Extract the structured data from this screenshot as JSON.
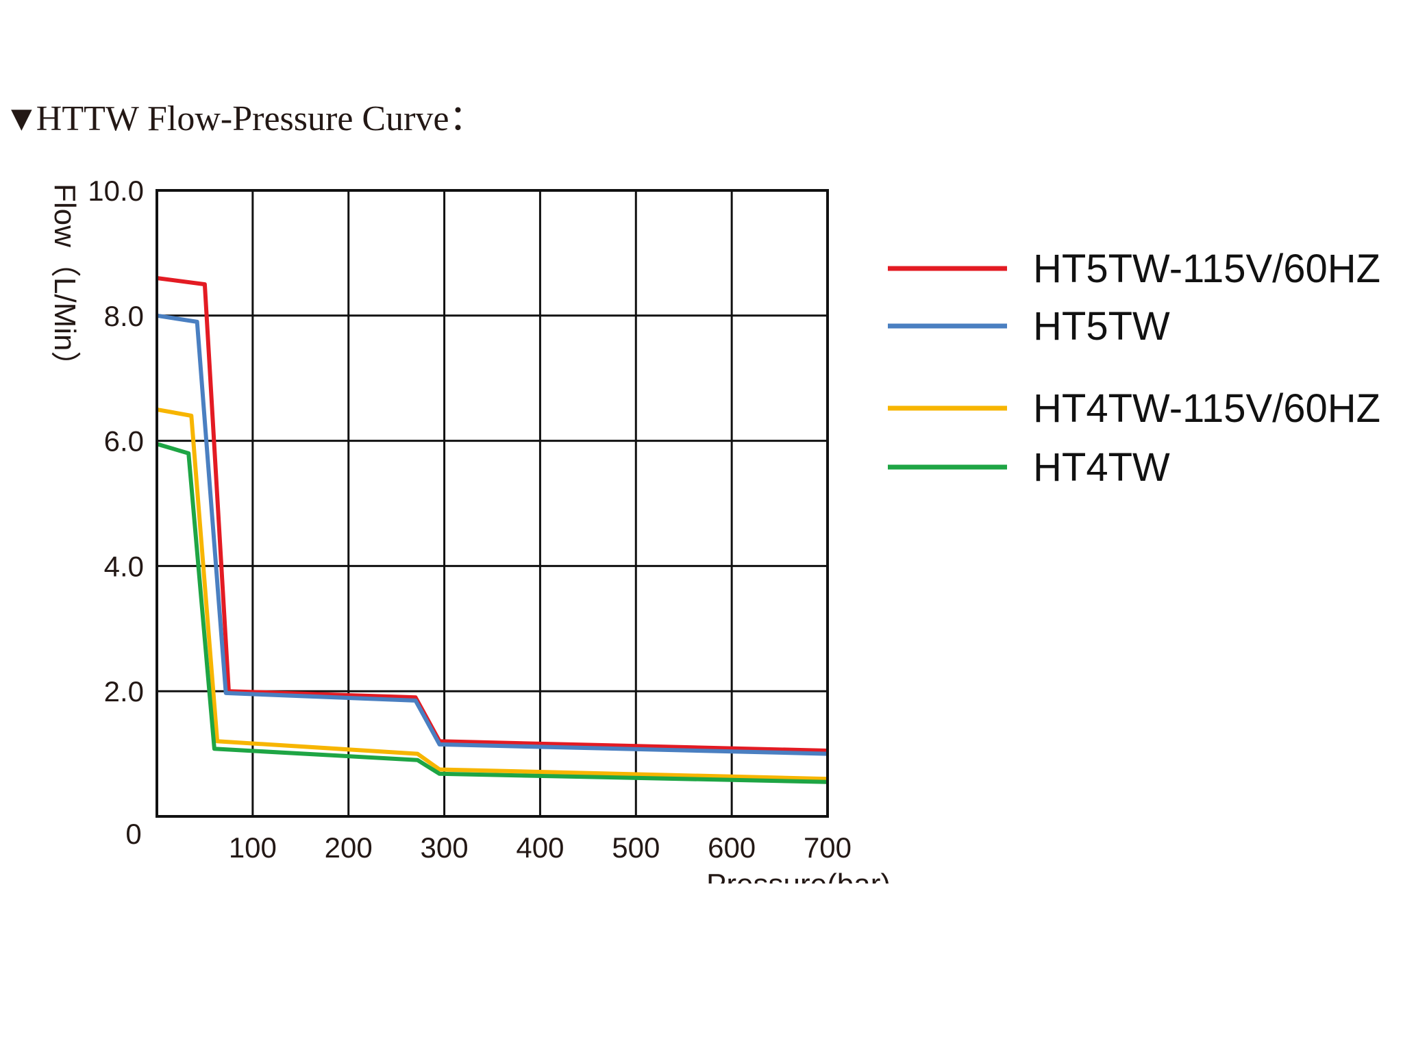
{
  "heading": {
    "marker": "▼",
    "text": "HTTW Flow-Pressure Curve："
  },
  "colors": {
    "red": "#e31b23",
    "blue": "#4a7fc1",
    "yellow": "#f7b500",
    "green": "#1ea544",
    "grid": "#111111"
  },
  "chart_data": {
    "type": "line",
    "title": "HTTW Flow-Pressure Curve：",
    "xlabel": "Pressure(bar)",
    "ylabel": "Flow（L/Min）",
    "xlim": [
      0,
      700
    ],
    "ylim": [
      0,
      10
    ],
    "x_ticks": [
      0,
      100,
      200,
      300,
      400,
      500,
      600,
      700
    ],
    "x_tick_labels": [
      "100",
      "200",
      "300",
      "400",
      "500",
      "600",
      "700"
    ],
    "y_ticks": [
      2,
      4,
      6,
      8,
      10
    ],
    "y_tick_labels": [
      "2.0",
      "4.0",
      "6.0",
      "8.0",
      "10.0"
    ],
    "origin_label": "0",
    "grid": true,
    "legend_position": "right",
    "series": [
      {
        "name": "HT5TW-115V/60HZ",
        "color": "#e31b23",
        "x": [
          0,
          50,
          75,
          270,
          295,
          700
        ],
        "y": [
          8.6,
          8.5,
          2.0,
          1.9,
          1.2,
          1.05
        ]
      },
      {
        "name": "HT5TW",
        "color": "#4a7fc1",
        "x": [
          0,
          42,
          72,
          270,
          295,
          700
        ],
        "y": [
          8.0,
          7.9,
          1.97,
          1.85,
          1.15,
          1.0
        ]
      },
      {
        "name": "HT4TW-115V/60HZ",
        "color": "#f7b500",
        "x": [
          0,
          36,
          63,
          272,
          295,
          700
        ],
        "y": [
          6.5,
          6.4,
          1.2,
          1.0,
          0.75,
          0.6
        ]
      },
      {
        "name": "HT4TW",
        "color": "#1ea544",
        "x": [
          0,
          33,
          60,
          272,
          295,
          700
        ],
        "y": [
          5.95,
          5.8,
          1.08,
          0.9,
          0.68,
          0.55
        ]
      }
    ]
  }
}
